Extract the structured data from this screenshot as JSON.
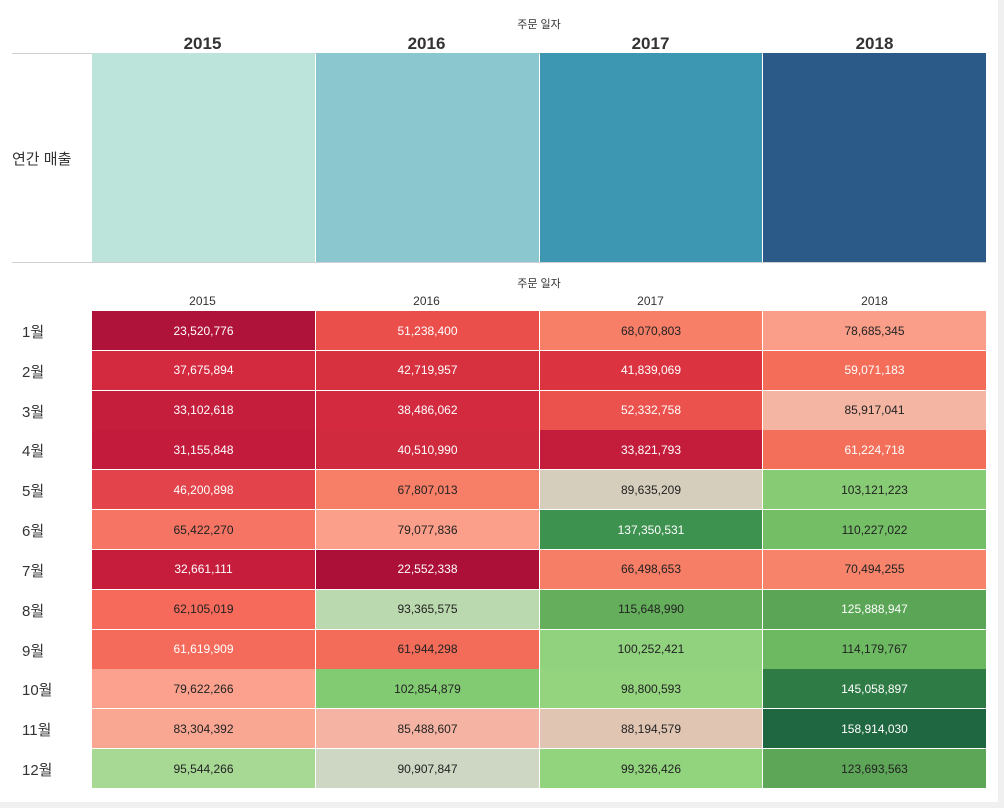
{
  "colors": {
    "annual": [
      "#bde4da",
      "#8bc7ce",
      "#3e97b2",
      "#2c5a88"
    ]
  },
  "top_panel": {
    "axis_caption": "주문 일자",
    "row_label": "연간 매출",
    "years": [
      "2015",
      "2016",
      "2017",
      "2018"
    ]
  },
  "bottom_panel": {
    "axis_caption": "주문 일자",
    "years": [
      "2015",
      "2016",
      "2017",
      "2018"
    ],
    "months": [
      "1월",
      "2월",
      "3월",
      "4월",
      "5월",
      "6월",
      "7월",
      "8월",
      "9월",
      "10월",
      "11월",
      "12월"
    ]
  },
  "chart_data": [
    {
      "type": "heatmap",
      "title": "",
      "x_axis_label": "주문 일자",
      "x": [
        "2015",
        "2016",
        "2017",
        "2018"
      ],
      "y": [
        "연간 매출"
      ],
      "colors": [
        "#bde4da",
        "#8bc7ce",
        "#3e97b2",
        "#2c5a88"
      ]
    },
    {
      "type": "heatmap",
      "title": "",
      "x_axis_label": "주문 일자",
      "x": [
        "2015",
        "2016",
        "2017",
        "2018"
      ],
      "y": [
        "1월",
        "2월",
        "3월",
        "4월",
        "5월",
        "6월",
        "7월",
        "8월",
        "9월",
        "10월",
        "11월",
        "12월"
      ],
      "values": [
        [
          23520776,
          51238400,
          68070803,
          78685345
        ],
        [
          37675894,
          42719957,
          41839069,
          59071183
        ],
        [
          33102618,
          38486062,
          52332758,
          85917041
        ],
        [
          31155848,
          40510990,
          33821793,
          61224718
        ],
        [
          46200898,
          67807013,
          89635209,
          103121223
        ],
        [
          65422270,
          79077836,
          137350531,
          110227022
        ],
        [
          32661111,
          22552338,
          66498653,
          70494255
        ],
        [
          62105019,
          93365575,
          115648990,
          125888947
        ],
        [
          61619909,
          61944298,
          100252421,
          114179767
        ],
        [
          79622266,
          102854879,
          98800593,
          145058897
        ],
        [
          83304392,
          85488607,
          88194579,
          158914030
        ],
        [
          95544266,
          90907847,
          99326426,
          123693563
        ]
      ],
      "labels": [
        [
          "23,520,776",
          "51,238,400",
          "68,070,803",
          "78,685,345"
        ],
        [
          "37,675,894",
          "42,719,957",
          "41,839,069",
          "59,071,183"
        ],
        [
          "33,102,618",
          "38,486,062",
          "52,332,758",
          "85,917,041"
        ],
        [
          "31,155,848",
          "40,510,990",
          "33,821,793",
          "61,224,718"
        ],
        [
          "46,200,898",
          "67,807,013",
          "89,635,209",
          "103,121,223"
        ],
        [
          "65,422,270",
          "79,077,836",
          "137,350,531",
          "110,227,022"
        ],
        [
          "32,661,111",
          "22,552,338",
          "66,498,653",
          "70,494,255"
        ],
        [
          "62,105,019",
          "93,365,575",
          "115,648,990",
          "125,888,947"
        ],
        [
          "61,619,909",
          "61,944,298",
          "100,252,421",
          "114,179,767"
        ],
        [
          "79,622,266",
          "102,854,879",
          "98,800,593",
          "145,058,897"
        ],
        [
          "83,304,392",
          "85,488,607",
          "88,194,579",
          "158,914,030"
        ],
        [
          "95,544,266",
          "90,907,847",
          "99,326,426",
          "123,693,563"
        ]
      ],
      "colors": [
        [
          "#b0133a",
          "#eb4f4c",
          "#f77f68",
          "#fb9e89"
        ],
        [
          "#d42a40",
          "#d7303f",
          "#dc3340",
          "#f46d58"
        ],
        [
          "#c51e3c",
          "#d32a40",
          "#ec524d",
          "#f5b5a3"
        ],
        [
          "#c21b3c",
          "#d02a3f",
          "#c41d3c",
          "#f36f59"
        ],
        [
          "#e3434a",
          "#f77f68",
          "#d6cebc",
          "#87cb74"
        ],
        [
          "#f57463",
          "#fb9e8a",
          "#3e924f",
          "#74bf66"
        ],
        [
          "#c51d3b",
          "#ac0f38",
          "#f67d66",
          "#f7836b"
        ],
        [
          "#f56a5a",
          "#bad9ae",
          "#64ae5c",
          "#5aa656"
        ],
        [
          "#f56b5b",
          "#f36c59",
          "#90d27e",
          "#6cb961"
        ],
        [
          "#fba18e",
          "#82cb72",
          "#94d47f",
          "#2e7b45"
        ],
        [
          "#f9a693",
          "#f5b4a3",
          "#e0c5b3",
          "#1f6740"
        ],
        [
          "#a7d995",
          "#cdd7c4",
          "#92d37e",
          "#5da658"
        ]
      ],
      "text_colors": [
        [
          "#ffffff",
          "#ffffff",
          "#222222",
          "#222222"
        ],
        [
          "#ffffff",
          "#ffffff",
          "#ffffff",
          "#ffffff"
        ],
        [
          "#ffffff",
          "#ffffff",
          "#ffffff",
          "#222222"
        ],
        [
          "#ffffff",
          "#ffffff",
          "#ffffff",
          "#ffffff"
        ],
        [
          "#ffffff",
          "#222222",
          "#222222",
          "#222222"
        ],
        [
          "#222222",
          "#222222",
          "#ffffff",
          "#222222"
        ],
        [
          "#ffffff",
          "#ffffff",
          "#222222",
          "#222222"
        ],
        [
          "#222222",
          "#222222",
          "#222222",
          "#ffffff"
        ],
        [
          "#ffffff",
          "#222222",
          "#222222",
          "#222222"
        ],
        [
          "#222222",
          "#222222",
          "#222222",
          "#ffffff"
        ],
        [
          "#222222",
          "#222222",
          "#222222",
          "#ffffff"
        ],
        [
          "#222222",
          "#222222",
          "#222222",
          "#222222"
        ]
      ]
    }
  ]
}
